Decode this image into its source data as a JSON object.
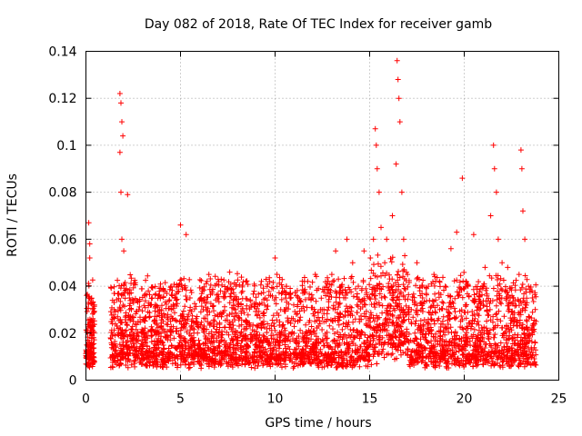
{
  "chart_data": {
    "type": "scatter",
    "title": "Day 082 of 2018, Rate Of TEC Index for receiver gamb",
    "xlabel": "GPS time / hours",
    "ylabel": "ROTI / TECUs",
    "xlim": [
      0,
      25
    ],
    "ylim": [
      0,
      0.14
    ],
    "grid": true,
    "marker": "+",
    "xticks": [
      0,
      5,
      10,
      15,
      20,
      25
    ],
    "xtick_labels": [
      "0",
      "5",
      "10",
      "15",
      "20",
      "25"
    ],
    "yticks": [
      0,
      0.02,
      0.04,
      0.06,
      0.08,
      0.1,
      0.12,
      0.14
    ],
    "ytick_labels": [
      "0",
      "0.02",
      "0.04",
      "0.06",
      "0.08",
      "0.1",
      "0.12",
      "0.14"
    ],
    "series": [
      {
        "name": "ROTI",
        "color": "#ff0000",
        "x": [
          0.05,
          0.1,
          0.15,
          0.2,
          0.25,
          0.3,
          0.35,
          0.4,
          0.45,
          0.2,
          0.25,
          0.3,
          1.3,
          1.5,
          1.7,
          1.8,
          1.85,
          1.9,
          1.95,
          1.8,
          1.85,
          1.9,
          2.0,
          2.2,
          2.3,
          2.5,
          2.8,
          3.0,
          3.3,
          3.6,
          3.9,
          4.2,
          4.5,
          4.8,
          5.0,
          5.1,
          5.3,
          5.5,
          5.7,
          6.0,
          6.2,
          6.5,
          6.8,
          7.0,
          7.3,
          7.6,
          7.9,
          8.2,
          8.5,
          8.8,
          9.1,
          9.4,
          9.7,
          10.0,
          10.1,
          10.3,
          10.6,
          10.9,
          11.2,
          11.5,
          11.8,
          12.1,
          12.4,
          12.7,
          13.0,
          13.2,
          13.5,
          13.8,
          14.1,
          14.4,
          14.7,
          15.0,
          15.2,
          15.3,
          15.35,
          15.4,
          15.5,
          15.6,
          15.8,
          15.9,
          16.0,
          16.2,
          16.4,
          16.45,
          16.5,
          16.55,
          16.6,
          16.7,
          16.8,
          17.0,
          17.2,
          17.5,
          17.8,
          18.1,
          18.4,
          18.7,
          19.0,
          19.3,
          19.6,
          19.9,
          20.2,
          20.5,
          20.8,
          21.1,
          21.4,
          21.55,
          21.6,
          21.7,
          21.8,
          22.0,
          22.3,
          22.6,
          22.9,
          23.0,
          23.05,
          23.1,
          23.2,
          23.4,
          23.6,
          23.8
        ],
        "y": [
          0.015,
          0.012,
          0.067,
          0.058,
          0.025,
          0.018,
          0.03,
          0.01,
          0.008,
          0.052,
          0.02,
          0.014,
          0.018,
          0.03,
          0.022,
          0.122,
          0.118,
          0.11,
          0.104,
          0.097,
          0.08,
          0.06,
          0.055,
          0.079,
          0.035,
          0.025,
          0.03,
          0.02,
          0.038,
          0.025,
          0.03,
          0.018,
          0.04,
          0.022,
          0.066,
          0.028,
          0.062,
          0.035,
          0.02,
          0.015,
          0.03,
          0.045,
          0.025,
          0.02,
          0.035,
          0.046,
          0.03,
          0.02,
          0.025,
          0.018,
          0.032,
          0.025,
          0.022,
          0.052,
          0.045,
          0.03,
          0.04,
          0.02,
          0.025,
          0.018,
          0.035,
          0.025,
          0.03,
          0.04,
          0.045,
          0.055,
          0.04,
          0.06,
          0.05,
          0.04,
          0.055,
          0.035,
          0.06,
          0.107,
          0.1,
          0.09,
          0.08,
          0.065,
          0.05,
          0.06,
          0.04,
          0.07,
          0.092,
          0.136,
          0.128,
          0.12,
          0.11,
          0.08,
          0.06,
          0.045,
          0.03,
          0.05,
          0.035,
          0.04,
          0.045,
          0.03,
          0.04,
          0.056,
          0.063,
          0.086,
          0.04,
          0.062,
          0.03,
          0.048,
          0.07,
          0.1,
          0.09,
          0.08,
          0.06,
          0.05,
          0.048,
          0.035,
          0.045,
          0.098,
          0.09,
          0.072,
          0.06,
          0.04,
          0.035,
          0.025
        ]
      }
    ]
  }
}
